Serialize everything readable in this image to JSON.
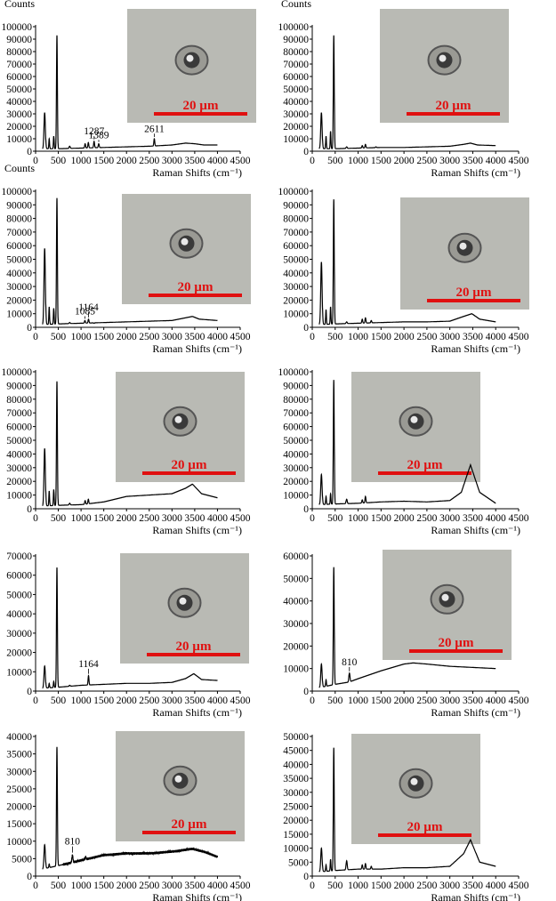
{
  "chart_data": [
    {
      "type": "line",
      "ylabel": "Counts",
      "xlabel": "Raman Shifts (cm⁻¹)",
      "xlim": [
        0,
        4500
      ],
      "ylim": [
        0,
        100000
      ],
      "x_ticks": [
        "0",
        "500",
        "1000",
        "1500",
        "2000",
        "2500",
        "3000",
        "3500",
        "4000",
        "4500"
      ],
      "y_ticks": [
        "0",
        "10000",
        "20000",
        "30000",
        "40000",
        "50000",
        "60000",
        "70000",
        "80000",
        "90000",
        "100000"
      ],
      "baseline": [
        [
          0,
          2000
        ],
        [
          150,
          2000
        ],
        [
          500,
          2000
        ],
        [
          1000,
          2500
        ],
        [
          1500,
          3000
        ],
        [
          2000,
          3500
        ],
        [
          2500,
          4000
        ],
        [
          3000,
          5000
        ],
        [
          3300,
          6500
        ],
        [
          3500,
          6000
        ],
        [
          3700,
          5000
        ],
        [
          4000,
          5000
        ]
      ],
      "peaks": [
        [
          200,
          31000,
          15
        ],
        [
          300,
          10000,
          8
        ],
        [
          400,
          12000,
          8
        ],
        [
          470,
          93000,
          10
        ],
        [
          750,
          4000,
          12
        ],
        [
          1090,
          6000,
          10
        ],
        [
          1160,
          7000,
          10
        ],
        [
          1287,
          8000,
          10
        ],
        [
          1389,
          6000,
          10
        ],
        [
          2611,
          10000,
          10
        ]
      ],
      "annotations": [
        {
          "x": 1287,
          "y": 13500,
          "text": "1287"
        },
        {
          "x": 1389,
          "y": 10500,
          "text": "1389"
        },
        {
          "x": 2611,
          "y": 15500,
          "text": "2611"
        }
      ],
      "inset": {
        "scale_text": "20 µm"
      }
    },
    {
      "type": "line",
      "ylabel": "Counts",
      "xlabel": "Raman Shifts (cm⁻¹)",
      "xlim": [
        0,
        4500
      ],
      "ylim": [
        0,
        100000
      ],
      "x_ticks": [
        "0",
        "500",
        "1000",
        "1500",
        "2000",
        "2500",
        "3000",
        "3500",
        "4000",
        "4500"
      ],
      "y_ticks": [
        "0",
        "10000",
        "20000",
        "30000",
        "40000",
        "50000",
        "60000",
        "70000",
        "80000",
        "90000",
        "100000"
      ],
      "baseline": [
        [
          0,
          2000
        ],
        [
          150,
          2000
        ],
        [
          500,
          2000
        ],
        [
          1000,
          2500
        ],
        [
          1500,
          3000
        ],
        [
          2000,
          3000
        ],
        [
          2500,
          3500
        ],
        [
          3000,
          4000
        ],
        [
          3300,
          5500
        ],
        [
          3450,
          6500
        ],
        [
          3600,
          5000
        ],
        [
          4000,
          4500
        ]
      ],
      "peaks": [
        [
          200,
          31000,
          15
        ],
        [
          300,
          12000,
          8
        ],
        [
          400,
          16000,
          8
        ],
        [
          470,
          93000,
          10
        ],
        [
          750,
          3500,
          12
        ],
        [
          1090,
          4500,
          10
        ],
        [
          1160,
          5500,
          10
        ],
        [
          1389,
          3500,
          10
        ]
      ],
      "annotations": [],
      "inset": {
        "scale_text": "20 µm"
      }
    },
    {
      "type": "line",
      "ylabel": "Counts",
      "xlabel": "Raman Shifts (cm⁻¹)",
      "xlim": [
        0,
        4500
      ],
      "ylim": [
        0,
        100000
      ],
      "x_ticks": [
        "0",
        "500",
        "1000",
        "1500",
        "2000",
        "2500",
        "3000",
        "3500",
        "4000",
        "4500"
      ],
      "y_ticks": [
        "0",
        "10000",
        "20000",
        "30000",
        "40000",
        "50000",
        "60000",
        "70000",
        "80000",
        "90000",
        "100000"
      ],
      "baseline": [
        [
          0,
          2000
        ],
        [
          150,
          2000
        ],
        [
          500,
          2500
        ],
        [
          1000,
          3000
        ],
        [
          1500,
          3500
        ],
        [
          2000,
          4000
        ],
        [
          2500,
          4500
        ],
        [
          3000,
          5000
        ],
        [
          3300,
          7000
        ],
        [
          3450,
          8000
        ],
        [
          3600,
          6000
        ],
        [
          4000,
          5000
        ]
      ],
      "peaks": [
        [
          200,
          58000,
          15
        ],
        [
          300,
          15000,
          8
        ],
        [
          400,
          14000,
          8
        ],
        [
          470,
          95000,
          10
        ],
        [
          750,
          3500,
          12
        ],
        [
          1085,
          5000,
          10
        ],
        [
          1164,
          6000,
          10
        ],
        [
          1287,
          3000,
          10
        ]
      ],
      "annotations": [
        {
          "x": 1085,
          "y": 9500,
          "text": "1085"
        },
        {
          "x": 1164,
          "y": 12500,
          "text": "1164"
        }
      ],
      "inset": {
        "scale_text": "20 µm"
      }
    },
    {
      "type": "line",
      "ylabel": "",
      "xlabel": "Raman Shifts (cm⁻¹)",
      "xlim": [
        0,
        4500
      ],
      "ylim": [
        0,
        100000
      ],
      "x_ticks": [
        "0",
        "500",
        "1000",
        "1500",
        "2000",
        "2500",
        "3000",
        "3500",
        "4000",
        "4500"
      ],
      "y_ticks": [
        "0",
        "10000",
        "20000",
        "30000",
        "40000",
        "50000",
        "60000",
        "70000",
        "80000",
        "90000",
        "100000"
      ],
      "baseline": [
        [
          0,
          2000
        ],
        [
          150,
          2000
        ],
        [
          500,
          2500
        ],
        [
          1000,
          3000
        ],
        [
          1500,
          3500
        ],
        [
          2000,
          4000
        ],
        [
          2500,
          4000
        ],
        [
          3000,
          4500
        ],
        [
          3300,
          8000
        ],
        [
          3480,
          10000
        ],
        [
          3650,
          6000
        ],
        [
          4000,
          4000
        ]
      ],
      "peaks": [
        [
          200,
          48000,
          15
        ],
        [
          300,
          13000,
          8
        ],
        [
          400,
          15000,
          8
        ],
        [
          470,
          94000,
          10
        ],
        [
          750,
          4000,
          12
        ],
        [
          1090,
          6000,
          10
        ],
        [
          1160,
          7000,
          10
        ],
        [
          1287,
          5000,
          10
        ]
      ],
      "annotations": [],
      "inset": {
        "scale_text": "20 µm"
      }
    },
    {
      "type": "line",
      "ylabel": "",
      "xlabel": "Raman Shifts (cm⁻¹)",
      "xlim": [
        0,
        4500
      ],
      "ylim": [
        0,
        100000
      ],
      "x_ticks": [
        "0",
        "500",
        "1000",
        "1500",
        "2000",
        "2500",
        "3000",
        "3500",
        "4000",
        "4500"
      ],
      "y_ticks": [
        "0",
        "10000",
        "20000",
        "30000",
        "40000",
        "50000",
        "60000",
        "70000",
        "80000",
        "90000",
        "100000"
      ],
      "baseline": [
        [
          0,
          2000
        ],
        [
          150,
          2000
        ],
        [
          500,
          2500
        ],
        [
          1000,
          3000
        ],
        [
          1500,
          5000
        ],
        [
          2000,
          9000
        ],
        [
          2500,
          10000
        ],
        [
          3000,
          11000
        ],
        [
          3300,
          15000
        ],
        [
          3450,
          18000
        ],
        [
          3650,
          11000
        ],
        [
          4000,
          8000
        ]
      ],
      "peaks": [
        [
          200,
          44000,
          15
        ],
        [
          300,
          13000,
          8
        ],
        [
          400,
          14000,
          8
        ],
        [
          470,
          93000,
          10
        ],
        [
          750,
          4000,
          12
        ],
        [
          1090,
          6000,
          10
        ],
        [
          1160,
          7000,
          10
        ]
      ],
      "annotations": [],
      "inset": {
        "scale_text": "20 µm"
      }
    },
    {
      "type": "line",
      "ylabel": "",
      "xlabel": "Raman Shifts (cm⁻¹)",
      "xlim": [
        0,
        4500
      ],
      "ylim": [
        0,
        100000
      ],
      "x_ticks": [
        "0",
        "500",
        "1000",
        "1500",
        "2000",
        "2500",
        "3000",
        "3500",
        "4000",
        "4500"
      ],
      "y_ticks": [
        "0",
        "10000",
        "20000",
        "30000",
        "40000",
        "50000",
        "60000",
        "70000",
        "80000",
        "90000",
        "100000"
      ],
      "baseline": [
        [
          0,
          3000
        ],
        [
          150,
          3000
        ],
        [
          500,
          3500
        ],
        [
          1000,
          4000
        ],
        [
          1500,
          5000
        ],
        [
          2000,
          5500
        ],
        [
          2500,
          5000
        ],
        [
          3000,
          6000
        ],
        [
          3250,
          12000
        ],
        [
          3450,
          32000
        ],
        [
          3650,
          12000
        ],
        [
          4000,
          4000
        ]
      ],
      "peaks": [
        [
          200,
          25000,
          15
        ],
        [
          300,
          9000,
          8
        ],
        [
          400,
          11000,
          8
        ],
        [
          470,
          94000,
          10
        ],
        [
          750,
          7000,
          12
        ],
        [
          1090,
          6500,
          10
        ],
        [
          1160,
          9000,
          10
        ]
      ],
      "annotations": [],
      "inset": {
        "scale_text": "20 µm"
      }
    },
    {
      "type": "line",
      "ylabel": "",
      "xlabel": "Raman Shifts (cm⁻¹)",
      "xlim": [
        0,
        4500
      ],
      "ylim": [
        0,
        70000
      ],
      "x_ticks": [
        "0",
        "500",
        "1000",
        "1500",
        "2000",
        "2500",
        "3000",
        "3500",
        "4000",
        "4500"
      ],
      "y_ticks": [
        "0",
        "10000",
        "20000",
        "30000",
        "40000",
        "50000",
        "60000",
        "70000"
      ],
      "baseline": [
        [
          0,
          1500
        ],
        [
          150,
          1500
        ],
        [
          500,
          2000
        ],
        [
          1000,
          3000
        ],
        [
          1500,
          3500
        ],
        [
          2000,
          4000
        ],
        [
          2500,
          4000
        ],
        [
          3000,
          4500
        ],
        [
          3300,
          6500
        ],
        [
          3480,
          9000
        ],
        [
          3650,
          6000
        ],
        [
          4000,
          5500
        ]
      ],
      "peaks": [
        [
          200,
          13000,
          15
        ],
        [
          300,
          4000,
          8
        ],
        [
          400,
          5000,
          8
        ],
        [
          470,
          64000,
          10
        ],
        [
          750,
          3000,
          12
        ],
        [
          1164,
          8000,
          10
        ]
      ],
      "annotations": [
        {
          "x": 1164,
          "y": 12500,
          "text": "1164"
        }
      ],
      "inset": {
        "scale_text": "20 µm"
      }
    },
    {
      "type": "line",
      "ylabel": "",
      "xlabel": "Raman Shifts (cm⁻¹)",
      "xlim": [
        0,
        4500
      ],
      "ylim": [
        0,
        60000
      ],
      "x_ticks": [
        "0",
        "500",
        "1000",
        "1500",
        "2000",
        "2500",
        "3000",
        "3500",
        "4000",
        "4500"
      ],
      "y_ticks": [
        "0",
        "10000",
        "20000",
        "30000",
        "40000",
        "50000",
        "60000"
      ],
      "baseline": [
        [
          0,
          1500
        ],
        [
          150,
          1500
        ],
        [
          500,
          3000
        ],
        [
          800,
          4000
        ],
        [
          1000,
          5500
        ],
        [
          1500,
          9000
        ],
        [
          2000,
          12000
        ],
        [
          2200,
          12500
        ],
        [
          2500,
          12000
        ],
        [
          3000,
          11000
        ],
        [
          3500,
          10500
        ],
        [
          4000,
          10000
        ]
      ],
      "peaks": [
        [
          200,
          12000,
          15
        ],
        [
          300,
          5000,
          8
        ],
        [
          470,
          55000,
          10
        ],
        [
          810,
          8000,
          12
        ]
      ],
      "annotations": [
        {
          "x": 810,
          "y": 11500,
          "text": "810"
        }
      ],
      "inset": {
        "scale_text": "20 µm"
      }
    },
    {
      "type": "line",
      "ylabel": "",
      "xlabel": "Raman Shifts (cm⁻¹)",
      "xlim": [
        0,
        4500
      ],
      "ylim": [
        0,
        40000
      ],
      "x_ticks": [
        "0",
        "500",
        "1000",
        "1500",
        "2000",
        "2500",
        "3000",
        "3500",
        "4000",
        "4500"
      ],
      "y_ticks": [
        "0",
        "5000",
        "10000",
        "15000",
        "20000",
        "25000",
        "30000",
        "35000",
        "40000"
      ],
      "baseline": [
        [
          0,
          2000
        ],
        [
          150,
          2000
        ],
        [
          500,
          3000
        ],
        [
          1000,
          4500
        ],
        [
          1500,
          6000
        ],
        [
          2000,
          6500
        ],
        [
          2500,
          6500
        ],
        [
          3000,
          7000
        ],
        [
          3450,
          7800
        ],
        [
          3700,
          7000
        ],
        [
          4000,
          5500
        ]
      ],
      "peaks": [
        [
          200,
          9000,
          15
        ],
        [
          300,
          3500,
          8
        ],
        [
          470,
          37000,
          10
        ],
        [
          810,
          6000,
          12
        ],
        [
          1100,
          5500,
          10
        ]
      ],
      "annotations": [
        {
          "x": 810,
          "y": 9000,
          "text": "810"
        }
      ],
      "noisy": true,
      "inset": {
        "scale_text": "20 µm"
      }
    },
    {
      "type": "line",
      "ylabel": "",
      "xlabel": "Raman Shifts (cm⁻¹)",
      "xlim": [
        0,
        4500
      ],
      "ylim": [
        0,
        50000
      ],
      "x_ticks": [
        "0",
        "500",
        "1000",
        "1500",
        "2000",
        "2500",
        "3000",
        "3500",
        "4000",
        "4500"
      ],
      "y_ticks": [
        "0",
        "5000",
        "10000",
        "15000",
        "20000",
        "25000",
        "30000",
        "35000",
        "40000",
        "45000",
        "50000"
      ],
      "baseline": [
        [
          0,
          1500
        ],
        [
          150,
          1500
        ],
        [
          500,
          2000
        ],
        [
          1000,
          2500
        ],
        [
          1500,
          2500
        ],
        [
          2000,
          3000
        ],
        [
          2500,
          3000
        ],
        [
          3000,
          3500
        ],
        [
          3300,
          8000
        ],
        [
          3450,
          13000
        ],
        [
          3650,
          5000
        ],
        [
          4000,
          3500
        ]
      ],
      "peaks": [
        [
          200,
          10000,
          15
        ],
        [
          300,
          4000,
          8
        ],
        [
          400,
          6000,
          8
        ],
        [
          470,
          46000,
          10
        ],
        [
          750,
          5500,
          12
        ],
        [
          1090,
          4000,
          10
        ],
        [
          1160,
          4500,
          10
        ],
        [
          1287,
          3500,
          10
        ]
      ],
      "annotations": [],
      "inset": {
        "scale_text": "20 µm"
      }
    }
  ]
}
